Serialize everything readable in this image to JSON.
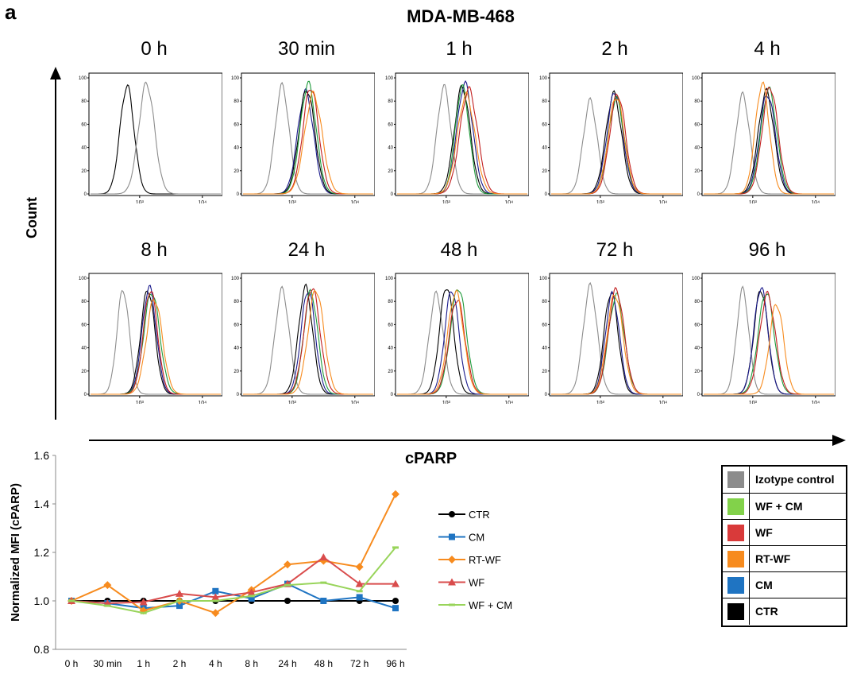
{
  "panel_letter": "a",
  "main_title": "MDA-MB-468",
  "count_label": "Count",
  "cparp_label": "cPARP",
  "colors": {
    "isotype": "#8c8c8c",
    "wf_cm": "#82d24a",
    "wf": "#d93a3a",
    "rt_wf": "#f78b1e",
    "cm": "#1f74c2",
    "ctr": "#000000",
    "dark_blue": "#1a1a8c",
    "dark_green": "#1d9a3a",
    "dark_red": "#c21f1f"
  },
  "histograms": {
    "y_ticks": [
      "0",
      "20",
      "40",
      "60",
      "80",
      "100"
    ],
    "x_ticks": [
      "10³",
      "10⁴"
    ],
    "panels": [
      {
        "title": "0 h"
      },
      {
        "title": "30 min"
      },
      {
        "title": "1 h"
      },
      {
        "title": "2 h"
      },
      {
        "title": "4 h"
      },
      {
        "title": "8 h"
      },
      {
        "title": "24 h"
      },
      {
        "title": "48 h"
      },
      {
        "title": "72 h"
      },
      {
        "title": "96 h"
      }
    ]
  },
  "chart_data": {
    "type": "line",
    "ylabel": "Normalized MFI (cPARP)",
    "xlabel": "",
    "ylim": [
      0.8,
      1.6
    ],
    "y_ticks": [
      "0.8",
      "1.0",
      "1.2",
      "1.4",
      "1.6"
    ],
    "categories": [
      "0 h",
      "30 min",
      "1 h",
      "2 h",
      "4 h",
      "8 h",
      "24 h",
      "48 h",
      "72 h",
      "96 h"
    ],
    "series": [
      {
        "name": "CTR",
        "color": "#000000",
        "marker": "circle",
        "values": [
          1.0,
          1.0,
          1.0,
          1.0,
          1.0,
          1.0,
          1.0,
          1.0,
          1.0,
          1.0
        ]
      },
      {
        "name": "CM",
        "color": "#1f74c2",
        "marker": "square",
        "values": [
          1.0,
          0.99,
          0.97,
          0.98,
          1.04,
          1.01,
          1.07,
          1.0,
          1.015,
          0.97
        ]
      },
      {
        "name": "RT-WF",
        "color": "#f78b1e",
        "marker": "diamond",
        "values": [
          1.0,
          1.065,
          0.96,
          1.0,
          0.95,
          1.045,
          1.15,
          1.165,
          1.14,
          1.44
        ]
      },
      {
        "name": "WF",
        "color": "#d94c4c",
        "marker": "triangle",
        "values": [
          1.0,
          0.99,
          0.995,
          1.03,
          1.015,
          1.035,
          1.07,
          1.18,
          1.07,
          1.07
        ]
      },
      {
        "name": "WF + CM",
        "color": "#98d45a",
        "marker": "dash",
        "values": [
          1.0,
          0.98,
          0.95,
          1.0,
          1.0,
          1.02,
          1.065,
          1.075,
          1.04,
          1.22
        ]
      }
    ]
  },
  "legend_box": [
    {
      "label": "Izotype control",
      "color": "#8c8c8c"
    },
    {
      "label": "WF + CM",
      "color": "#82d24a"
    },
    {
      "label": "WF",
      "color": "#d93a3a"
    },
    {
      "label": "RT-WF",
      "color": "#f78b1e"
    },
    {
      "label": "CM",
      "color": "#1f74c2"
    },
    {
      "label": "CTR",
      "color": "#000000"
    }
  ]
}
